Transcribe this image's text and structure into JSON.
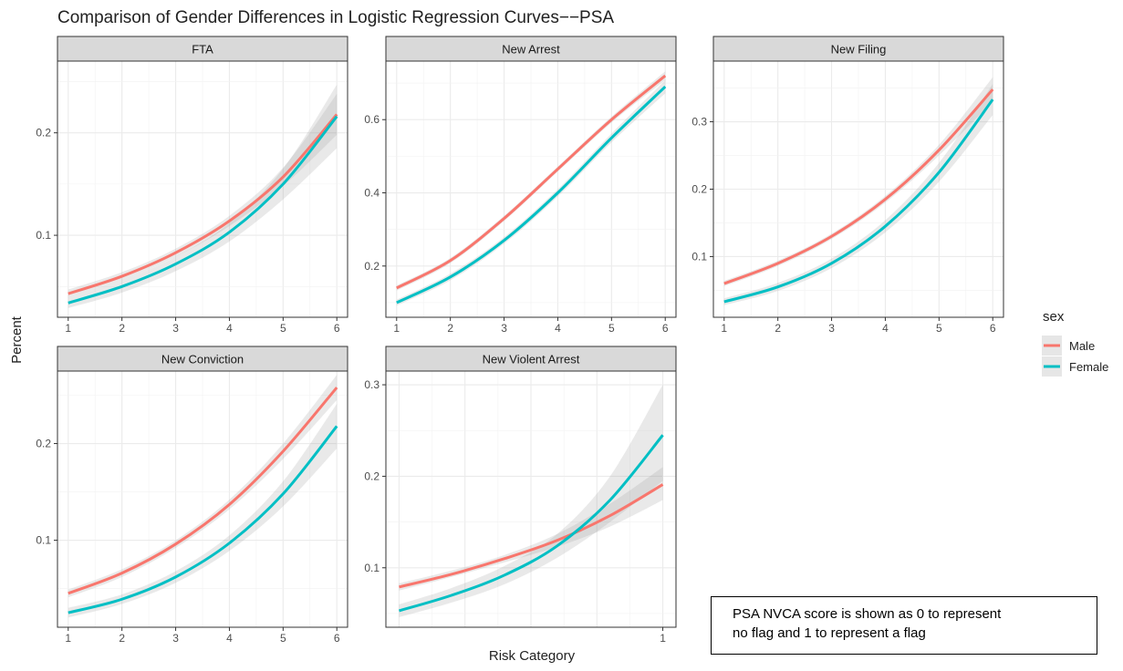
{
  "chart_data": {
    "type": "line",
    "title": "Comparison of Gender Differences in Logistic Regression Curves−−PSA",
    "xlabel": "Risk Category",
    "ylabel": "Percent",
    "legend": {
      "title": "sex",
      "position": "right",
      "entries": [
        {
          "name": "Male",
          "color": "#F8766D"
        },
        {
          "name": "Female",
          "color": "#00BFC4"
        }
      ]
    },
    "grid": true,
    "confidence_bands": true,
    "panels": [
      {
        "label": "FTA",
        "x": [
          1,
          2,
          3,
          4,
          5,
          6
        ],
        "x_ticks": [
          1,
          2,
          3,
          4,
          5,
          6
        ],
        "xlim": [
          0.8,
          6.2
        ],
        "y_ticks": [
          0.1,
          0.2
        ],
        "ylim": [
          0.02,
          0.27
        ],
        "series": [
          {
            "name": "Male",
            "values": [
              0.043,
              0.06,
              0.083,
              0.114,
              0.157,
              0.218
            ],
            "lower": [
              0.039,
              0.056,
              0.079,
              0.109,
              0.148,
              0.198
            ],
            "upper": [
              0.047,
              0.064,
              0.087,
              0.119,
              0.166,
              0.238
            ]
          },
          {
            "name": "Female",
            "values": [
              0.034,
              0.05,
              0.072,
              0.103,
              0.15,
              0.216
            ],
            "lower": [
              0.029,
              0.044,
              0.065,
              0.094,
              0.135,
              0.185
            ],
            "upper": [
              0.039,
              0.056,
              0.079,
              0.112,
              0.165,
              0.247
            ]
          }
        ]
      },
      {
        "label": "New Arrest",
        "x": [
          1,
          2,
          3,
          4,
          5,
          6
        ],
        "x_ticks": [
          1,
          2,
          3,
          4,
          5,
          6
        ],
        "xlim": [
          0.8,
          6.2
        ],
        "y_ticks": [
          0.2,
          0.4,
          0.6
        ],
        "ylim": [
          0.06,
          0.76
        ],
        "series": [
          {
            "name": "Male",
            "values": [
              0.14,
              0.215,
              0.33,
              0.465,
              0.6,
              0.72
            ],
            "lower": [
              0.133,
              0.208,
              0.323,
              0.458,
              0.592,
              0.708
            ],
            "upper": [
              0.147,
              0.222,
              0.337,
              0.472,
              0.608,
              0.732
            ]
          },
          {
            "name": "Female",
            "values": [
              0.1,
              0.17,
              0.27,
              0.4,
              0.55,
              0.69
            ],
            "lower": [
              0.092,
              0.161,
              0.261,
              0.39,
              0.538,
              0.672
            ],
            "upper": [
              0.108,
              0.179,
              0.279,
              0.41,
              0.562,
              0.708
            ]
          }
        ]
      },
      {
        "label": "New Filing",
        "x": [
          1,
          2,
          3,
          4,
          5,
          6
        ],
        "x_ticks": [
          1,
          2,
          3,
          4,
          5,
          6
        ],
        "xlim": [
          0.8,
          6.2
        ],
        "y_ticks": [
          0.1,
          0.2,
          0.3
        ],
        "ylim": [
          0.01,
          0.39
        ],
        "series": [
          {
            "name": "Male",
            "values": [
              0.06,
              0.09,
              0.13,
              0.185,
              0.258,
              0.348
            ],
            "lower": [
              0.056,
              0.086,
              0.126,
              0.18,
              0.25,
              0.33
            ],
            "upper": [
              0.064,
              0.094,
              0.134,
              0.19,
              0.266,
              0.366
            ]
          },
          {
            "name": "Female",
            "values": [
              0.033,
              0.055,
              0.09,
              0.145,
              0.225,
              0.333
            ],
            "lower": [
              0.028,
              0.049,
              0.083,
              0.136,
              0.211,
              0.31
            ],
            "upper": [
              0.038,
              0.061,
              0.097,
              0.154,
              0.239,
              0.356
            ]
          }
        ]
      },
      {
        "label": "New Conviction",
        "x": [
          1,
          2,
          3,
          4,
          5,
          6
        ],
        "x_ticks": [
          1,
          2,
          3,
          4,
          5,
          6
        ],
        "xlim": [
          0.8,
          6.2
        ],
        "y_ticks": [
          0.1,
          0.2
        ],
        "ylim": [
          0.01,
          0.275
        ],
        "series": [
          {
            "name": "Male",
            "values": [
              0.045,
              0.066,
              0.096,
              0.137,
              0.192,
              0.258
            ],
            "lower": [
              0.041,
              0.062,
              0.092,
              0.132,
              0.184,
              0.245
            ],
            "upper": [
              0.049,
              0.07,
              0.1,
              0.142,
              0.2,
              0.271
            ]
          },
          {
            "name": "Female",
            "values": [
              0.025,
              0.039,
              0.062,
              0.097,
              0.148,
              0.218
            ],
            "lower": [
              0.02,
              0.034,
              0.056,
              0.089,
              0.135,
              0.195
            ],
            "upper": [
              0.03,
              0.044,
              0.068,
              0.105,
              0.161,
              0.241
            ]
          }
        ]
      },
      {
        "label": "New Violent Arrest",
        "x": [
          0,
          0.2,
          0.4,
          0.6,
          0.8,
          1
        ],
        "x_ticks": [
          1
        ],
        "xlim": [
          -0.05,
          1.05
        ],
        "y_ticks": [
          0.1,
          0.2,
          0.3
        ],
        "ylim": [
          0.035,
          0.315
        ],
        "series": [
          {
            "name": "Male",
            "values": [
              0.079,
              0.093,
              0.11,
              0.13,
              0.157,
              0.191
            ],
            "lower": [
              0.075,
              0.09,
              0.106,
              0.123,
              0.145,
              0.174
            ],
            "upper": [
              0.083,
              0.097,
              0.114,
              0.137,
              0.17,
              0.21
            ]
          },
          {
            "name": "Female",
            "values": [
              0.053,
              0.07,
              0.092,
              0.124,
              0.174,
              0.245
            ],
            "lower": [
              0.046,
              0.062,
              0.082,
              0.111,
              0.15,
              0.195
            ],
            "upper": [
              0.06,
              0.078,
              0.102,
              0.137,
              0.2,
              0.3
            ]
          }
        ]
      }
    ]
  },
  "note": {
    "line1": "PSA NVCA score is shown as 0 to represent",
    "line2": "no flag and 1 to represent a flag"
  }
}
